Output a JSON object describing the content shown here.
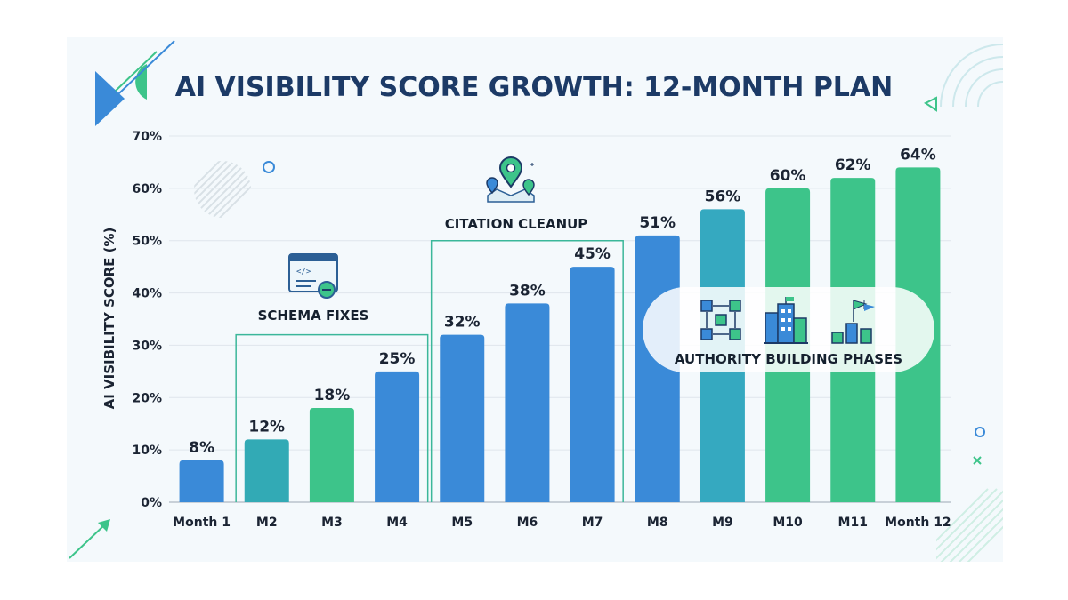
{
  "chart_data": {
    "type": "bar",
    "title": "AI VISIBILITY SCORE GROWTH: 12-MONTH PLAN",
    "xlabel": "",
    "ylabel": "AI VISIBILITY SCORE (%)",
    "ylim": [
      0,
      70
    ],
    "yticks": [
      "0%",
      "10%",
      "20%",
      "30%",
      "40%",
      "50%",
      "60%",
      "70%"
    ],
    "grid": true,
    "categories": [
      "Month 1",
      "M2",
      "M3",
      "M4",
      "M5",
      "M6",
      "M7",
      "M8",
      "M9",
      "M10",
      "M11",
      "Month 12"
    ],
    "values": [
      8,
      12,
      18,
      25,
      32,
      38,
      45,
      51,
      56,
      60,
      62,
      64
    ],
    "data_labels": [
      "8%",
      "12%",
      "18%",
      "25%",
      "32%",
      "38%",
      "45%",
      "51%",
      "56%",
      "60%",
      "62%",
      "64%"
    ],
    "bar_colors": [
      "#3a8ad8",
      "#32aab5",
      "#3dc48a",
      "#3a8ad8",
      "#3a8ad8",
      "#3a8ad8",
      "#3a8ad8",
      "#3a8ad8",
      "#35a9c0",
      "#3dc48a",
      "#3dc48a",
      "#3dc48a"
    ],
    "annotations": [
      {
        "label": "SCHEMA FIXES",
        "icon": "code-window-icon",
        "from_category": "M2",
        "to_category": "M4",
        "level": 32
      },
      {
        "label": "CITATION CLEANUP",
        "icon": "map-pins-icon",
        "from_category": "M5",
        "to_category": "M7",
        "level": 50
      },
      {
        "label": "AUTHORITY BUILDING PHASES",
        "icons": [
          "network-cubes-icon",
          "buildings-icon",
          "flag-bars-icon"
        ],
        "from_category": "M8",
        "to_category": "Month 12",
        "level": 40
      }
    ]
  },
  "colors": {
    "title": "#1c3a66",
    "blue": "#3a8ad8",
    "teal": "#32aab5",
    "green": "#3dc48a",
    "annotation_line": "#3bb79a"
  }
}
